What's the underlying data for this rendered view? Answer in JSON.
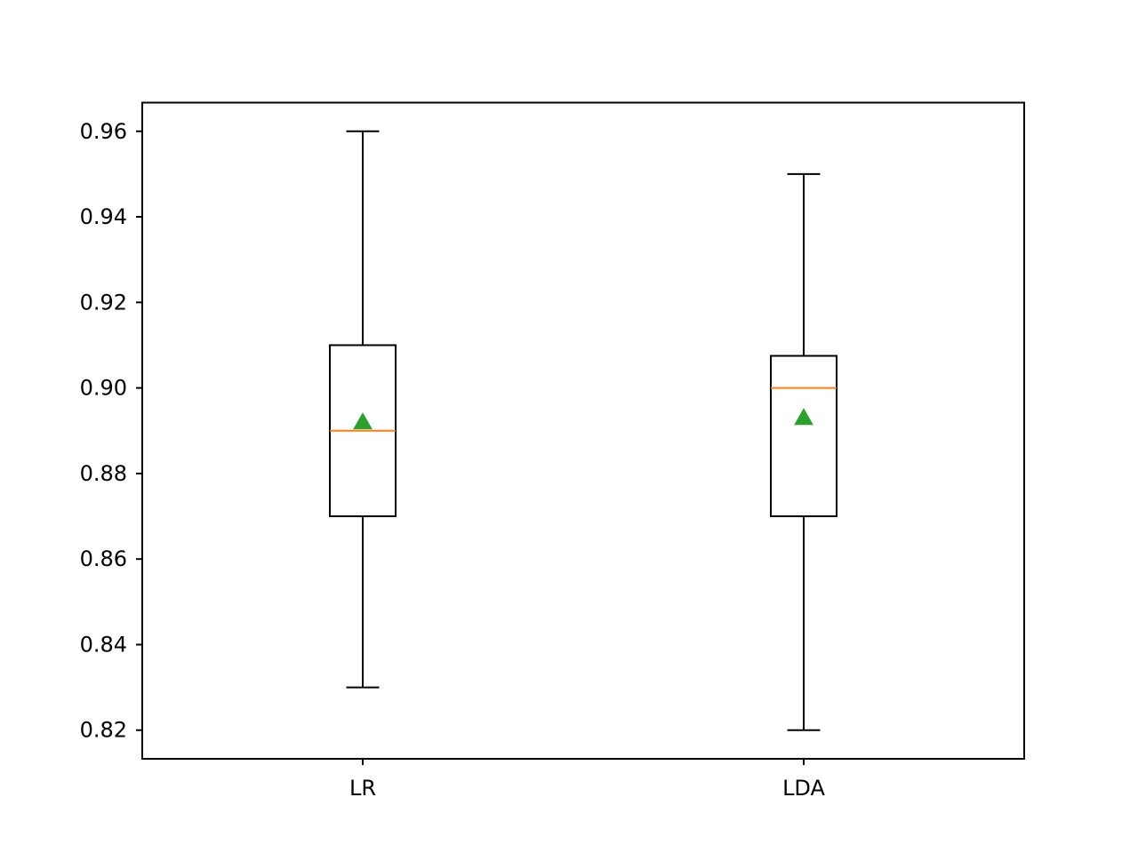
{
  "chart_data": {
    "type": "box",
    "title": "",
    "xlabel": "",
    "ylabel": "",
    "ylim": [
      0.8133,
      0.9667
    ],
    "yticks": [
      0.82,
      0.84,
      0.86,
      0.88,
      0.9,
      0.92,
      0.94,
      0.96
    ],
    "ytick_labels": [
      "0.82",
      "0.84",
      "0.86",
      "0.88",
      "0.90",
      "0.92",
      "0.94",
      "0.96"
    ],
    "categories": [
      "LR",
      "LDA"
    ],
    "boxes": [
      {
        "label": "LR",
        "whisker_low": 0.83,
        "q1": 0.87,
        "median": 0.89,
        "q3": 0.91,
        "whisker_high": 0.96,
        "mean": 0.892
      },
      {
        "label": "LDA",
        "whisker_low": 0.82,
        "q1": 0.87,
        "median": 0.9,
        "q3": 0.9075,
        "whisker_high": 0.95,
        "mean": 0.893
      }
    ],
    "grid": false,
    "colors": {
      "box": "#000000",
      "median": "#ff7f0e",
      "mean": "#2ca02c"
    }
  }
}
